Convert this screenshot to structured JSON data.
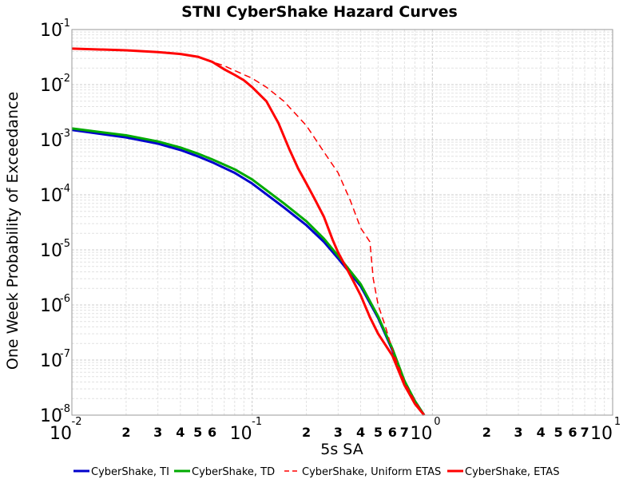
{
  "chart_data": {
    "type": "line",
    "title": "STNI CyberShake Hazard Curves",
    "xlabel": "5s SA",
    "ylabel": "One Week Probability of Exceedance",
    "xscale": "log",
    "yscale": "log",
    "xlim": [
      0.01,
      10
    ],
    "ylim": [
      1e-08,
      0.1
    ],
    "grid": true,
    "legend_position": "bottom",
    "x_major_ticks": [
      {
        "base": "10",
        "exp": "-2"
      },
      {
        "base": "10",
        "exp": "-1"
      },
      {
        "base": "10",
        "exp": "0"
      },
      {
        "base": "10",
        "exp": "1"
      }
    ],
    "x_minor_tick_labels": [
      "2",
      "3",
      "4",
      "5",
      "6",
      "2",
      "3",
      "4",
      "5",
      "6",
      "7",
      "2",
      "3",
      "4",
      "5",
      "6",
      "7"
    ],
    "y_major_ticks": [
      {
        "base": "10",
        "exp": "-1"
      },
      {
        "base": "10",
        "exp": "-2"
      },
      {
        "base": "10",
        "exp": "-3"
      },
      {
        "base": "10",
        "exp": "-4"
      },
      {
        "base": "10",
        "exp": "-5"
      },
      {
        "base": "10",
        "exp": "-6"
      },
      {
        "base": "10",
        "exp": "-7"
      },
      {
        "base": "10",
        "exp": "-8"
      }
    ],
    "series": [
      {
        "name": "CyberShake, TI",
        "color": "#0000cc",
        "dash": "solid",
        "x": [
          0.01,
          0.02,
          0.03,
          0.04,
          0.05,
          0.06,
          0.08,
          0.1,
          0.15,
          0.2,
          0.25,
          0.3,
          0.4,
          0.5,
          0.6,
          0.7,
          0.8,
          0.9
        ],
        "y": [
          0.0015,
          0.0011,
          0.00085,
          0.00065,
          0.0005,
          0.00039,
          0.00025,
          0.00016,
          5.9e-05,
          2.8e-05,
          1.4e-05,
          7e-06,
          2.2e-06,
          5.8e-07,
          1.5e-07,
          4e-08,
          1.8e-08,
          1e-08
        ]
      },
      {
        "name": "CyberShake, TD",
        "color": "#00aa00",
        "dash": "solid",
        "x": [
          0.01,
          0.02,
          0.03,
          0.04,
          0.05,
          0.06,
          0.08,
          0.1,
          0.15,
          0.2,
          0.25,
          0.3,
          0.4,
          0.5,
          0.6,
          0.7,
          0.8,
          0.9
        ],
        "y": [
          0.0016,
          0.0012,
          0.00093,
          0.00072,
          0.00056,
          0.00044,
          0.00029,
          0.00019,
          7e-05,
          3.3e-05,
          1.6e-05,
          7.8e-06,
          2.4e-06,
          6.2e-07,
          1.6e-07,
          4.2e-08,
          1.8e-08,
          1e-08
        ]
      },
      {
        "name": "CyberShake, Uniform ETAS",
        "color": "#ff0000",
        "dash": "dashed",
        "x": [
          0.01,
          0.02,
          0.03,
          0.04,
          0.05,
          0.06,
          0.07,
          0.08,
          0.1,
          0.12,
          0.15,
          0.2,
          0.25,
          0.3,
          0.35,
          0.4,
          0.45,
          0.47,
          0.5,
          0.55,
          0.6,
          0.7,
          0.8,
          0.9
        ],
        "y": [
          0.045,
          0.042,
          0.039,
          0.036,
          0.032,
          0.026,
          0.022,
          0.018,
          0.013,
          0.009,
          0.005,
          0.0018,
          0.0006,
          0.00025,
          8e-05,
          2.5e-05,
          1.4e-05,
          3e-06,
          1e-06,
          4e-07,
          1.5e-07,
          4e-08,
          1.8e-08,
          1e-08
        ]
      },
      {
        "name": "CyberShake, ETAS",
        "color": "#ff0000",
        "dash": "solid",
        "x": [
          0.01,
          0.02,
          0.03,
          0.04,
          0.05,
          0.06,
          0.07,
          0.08,
          0.09,
          0.1,
          0.12,
          0.14,
          0.16,
          0.18,
          0.2,
          0.22,
          0.25,
          0.28,
          0.3,
          0.35,
          0.4,
          0.45,
          0.5,
          0.6,
          0.7,
          0.8,
          0.9
        ],
        "y": [
          0.045,
          0.042,
          0.039,
          0.036,
          0.032,
          0.026,
          0.019,
          0.015,
          0.012,
          0.009,
          0.005,
          0.002,
          0.0007,
          0.0003,
          0.00016,
          9e-05,
          4e-05,
          1.5e-05,
          9e-06,
          3.5e-06,
          1.5e-06,
          6e-07,
          3e-07,
          1.2e-07,
          3.5e-08,
          1.6e-08,
          1e-08
        ]
      }
    ]
  }
}
